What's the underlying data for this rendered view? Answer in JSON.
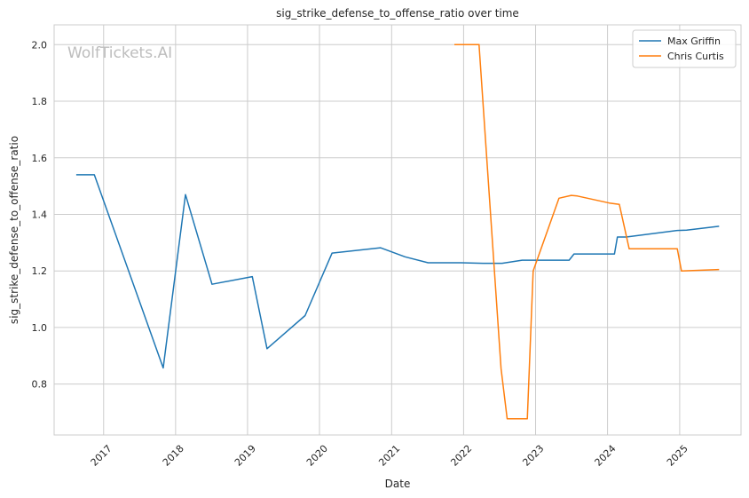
{
  "chart_data": {
    "type": "line",
    "title": "sig_strike_defense_to_offense_ratio over time",
    "xlabel": "Date",
    "ylabel": "sig_strike_defense_to_offense_ratio",
    "watermark": "WolfTickets.AI",
    "x_ticks": [
      "2017",
      "2018",
      "2019",
      "2020",
      "2021",
      "2022",
      "2023",
      "2024",
      "2025"
    ],
    "y_ticks": [
      "0.8",
      "1.0",
      "1.2",
      "1.4",
      "1.6",
      "1.8",
      "2.0"
    ],
    "xlim": [
      "2016-04-25",
      "2025-11-08"
    ],
    "ylim": [
      0.62,
      2.07
    ],
    "grid": true,
    "legend_position": "top-right",
    "colors": {
      "Max Griffin": "#1f77b4",
      "Chris Curtis": "#ff7f0e"
    },
    "series": [
      {
        "name": "Max Griffin",
        "points": [
          [
            "2016-08-15",
            1.54
          ],
          [
            "2016-11-15",
            1.54
          ],
          [
            "2017-10-30",
            0.857
          ],
          [
            "2018-02-20",
            1.47
          ],
          [
            "2018-07-05",
            1.153
          ],
          [
            "2019-01-25",
            1.18
          ],
          [
            "2019-04-10",
            0.925
          ],
          [
            "2019-10-20",
            1.042
          ],
          [
            "2020-03-05",
            1.263
          ],
          [
            "2020-11-05",
            1.282
          ],
          [
            "2021-03-10",
            1.25
          ],
          [
            "2021-07-05",
            1.229
          ],
          [
            "2021-12-20",
            1.229
          ],
          [
            "2022-04-10",
            1.227
          ],
          [
            "2022-07-15",
            1.227
          ],
          [
            "2022-10-25",
            1.238
          ],
          [
            "2023-06-20",
            1.238
          ],
          [
            "2023-07-15",
            1.26
          ],
          [
            "2024-02-05",
            1.26
          ],
          [
            "2024-02-20",
            1.32
          ],
          [
            "2024-04-05",
            1.32
          ],
          [
            "2024-12-20",
            1.343
          ],
          [
            "2025-02-05",
            1.344
          ],
          [
            "2025-07-20",
            1.358
          ]
        ]
      },
      {
        "name": "Chris Curtis",
        "points": [
          [
            "2021-11-15",
            2.0
          ],
          [
            "2022-03-20",
            2.0
          ],
          [
            "2022-07-10",
            0.855
          ],
          [
            "2022-08-10",
            0.677
          ],
          [
            "2022-11-20",
            0.677
          ],
          [
            "2022-12-20",
            1.2
          ],
          [
            "2023-04-30",
            1.457
          ],
          [
            "2023-07-01",
            1.467
          ],
          [
            "2023-08-01",
            1.465
          ],
          [
            "2024-01-10",
            1.44
          ],
          [
            "2024-03-01",
            1.435
          ],
          [
            "2024-04-20",
            1.278
          ],
          [
            "2024-12-20",
            1.278
          ],
          [
            "2025-01-10",
            1.2
          ],
          [
            "2025-07-20",
            1.205
          ]
        ]
      }
    ]
  }
}
